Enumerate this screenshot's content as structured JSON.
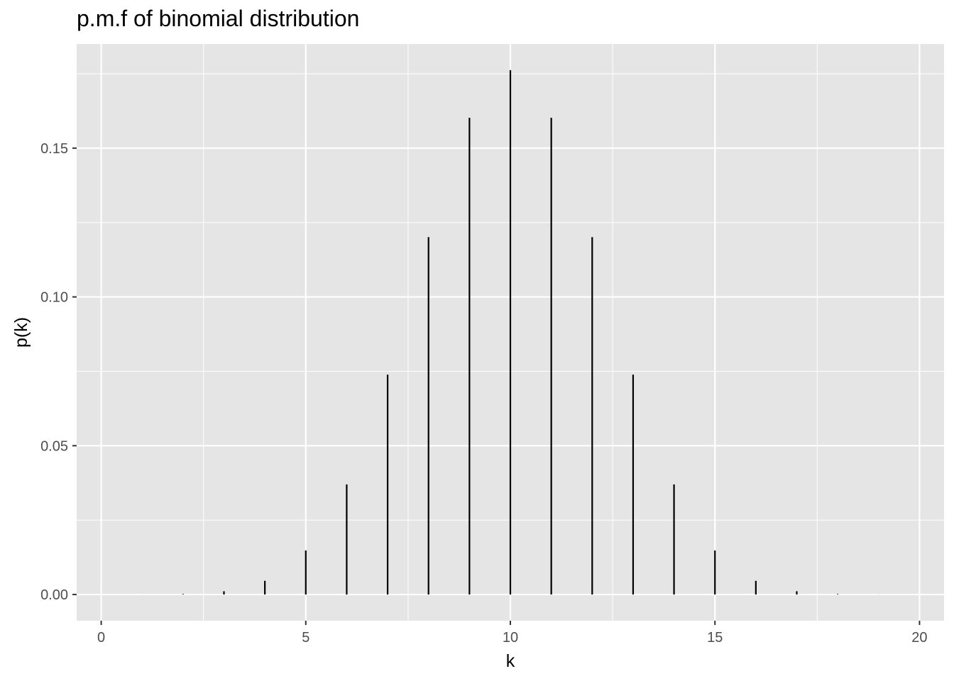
{
  "chart_data": {
    "type": "bar",
    "title": "p.m.f of binomial distribution",
    "xlabel": "k",
    "ylabel": "p(k)",
    "x": [
      0,
      1,
      2,
      3,
      4,
      5,
      6,
      7,
      8,
      9,
      10,
      11,
      12,
      13,
      14,
      15,
      16,
      17,
      18,
      19,
      20
    ],
    "values": [
      9.5e-07,
      1.9e-05,
      0.00018,
      0.0011,
      0.0046,
      0.0148,
      0.037,
      0.0739,
      0.1201,
      0.1602,
      0.1762,
      0.1602,
      0.1201,
      0.0739,
      0.037,
      0.0148,
      0.0046,
      0.0011,
      0.00018,
      1.9e-05,
      9.5e-07
    ],
    "xlim": [
      -0.6,
      20.6
    ],
    "ylim": [
      -0.0088,
      0.185
    ],
    "x_ticks": [
      0,
      5,
      10,
      15,
      20
    ],
    "x_tick_labels": [
      "0",
      "5",
      "10",
      "15",
      "20"
    ],
    "y_ticks": [
      0,
      0.05,
      0.1,
      0.15
    ],
    "y_tick_labels": [
      "0.00",
      "0.05",
      "0.10",
      "0.15"
    ],
    "grid": true,
    "colors": {
      "panel": "#e5e5e5",
      "grid": "#ffffff",
      "bar": "#000000"
    }
  }
}
